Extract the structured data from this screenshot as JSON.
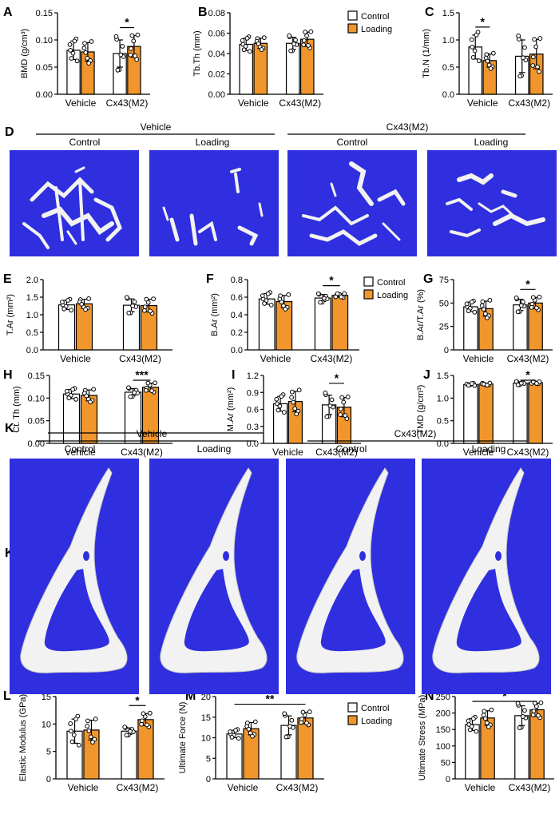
{
  "colors": {
    "control": "#ffffff",
    "loading": "#f0962d",
    "stroke": "#000000",
    "bone_bg": "#2f2fe0",
    "bone": "#f2f2f2"
  },
  "legend": {
    "control": "Control",
    "loading": "Loading"
  },
  "groups": [
    "Vehicle",
    "Cx43(M2)"
  ],
  "panels_top_text": {
    "D": {
      "label": "D",
      "group1": "Vehicle",
      "group2": "Cx43(M2)",
      "sub": [
        "Control",
        "Loading",
        "Control",
        "Loading"
      ]
    },
    "K": {
      "label": "K",
      "group1": "Vehicle",
      "group2": "Cx43(M2)",
      "sub": [
        "Control",
        "Loading",
        "Control",
        "Loading"
      ]
    }
  },
  "chart_data": [
    {
      "id": "A",
      "type": "bar",
      "ylabel": "BMD (g/cm³)",
      "ylim": [
        0,
        0.15
      ],
      "yticks": [
        "0.00",
        "0.05",
        "0.10",
        "0.15"
      ],
      "categories": [
        "Vehicle",
        "Cx43(M2)"
      ],
      "series": [
        {
          "name": "Control",
          "values": [
            0.081,
            0.075
          ],
          "err": [
            0.017,
            0.025
          ]
        },
        {
          "name": "Loading",
          "values": [
            0.078,
            0.088
          ],
          "err": [
            0.017,
            0.02
          ]
        }
      ],
      "sig": [
        {
          "text": "*",
          "compare": "Cx43(M2) Control vs Loading"
        }
      ]
    },
    {
      "id": "B",
      "type": "bar",
      "ylabel": "Tb.Th (mm)",
      "ylim": [
        0,
        0.08
      ],
      "yticks": [
        "0.00",
        "0.02",
        "0.04",
        "0.06",
        "0.08"
      ],
      "categories": [
        "Vehicle",
        "Cx43(M2)"
      ],
      "series": [
        {
          "name": "Control",
          "values": [
            0.049,
            0.05
          ],
          "err": [
            0.006,
            0.006
          ]
        },
        {
          "name": "Loading",
          "values": [
            0.05,
            0.054
          ],
          "err": [
            0.005,
            0.007
          ]
        }
      ],
      "sig": []
    },
    {
      "id": "C",
      "type": "bar",
      "ylabel": "Tb.N (1/mm)",
      "ylim": [
        0,
        1.5
      ],
      "yticks": [
        "0.0",
        "0.5",
        "1.0",
        "1.5"
      ],
      "categories": [
        "Vehicle",
        "Cx43(M2)"
      ],
      "series": [
        {
          "name": "Control",
          "values": [
            0.87,
            0.7
          ],
          "err": [
            0.22,
            0.3
          ]
        },
        {
          "name": "Loading",
          "values": [
            0.62,
            0.74
          ],
          "err": [
            0.12,
            0.27
          ]
        }
      ],
      "sig": [
        {
          "text": "*",
          "compare": "Vehicle Control vs Loading"
        }
      ]
    },
    {
      "id": "E",
      "type": "bar",
      "ylabel": "T.Ar (mm²)",
      "ylim": [
        0,
        2.0
      ],
      "yticks": [
        "0.0",
        "0.5",
        "1.0",
        "1.5",
        "2.0"
      ],
      "categories": [
        "Vehicle",
        "Cx43(M2)"
      ],
      "series": [
        {
          "name": "Control",
          "values": [
            1.28,
            1.27
          ],
          "err": [
            0.13,
            0.18
          ]
        },
        {
          "name": "Loading",
          "values": [
            1.31,
            1.26
          ],
          "err": [
            0.13,
            0.18
          ]
        }
      ],
      "sig": []
    },
    {
      "id": "F",
      "type": "bar",
      "ylabel": "B.Ar (mm²)",
      "ylim": [
        0,
        0.8
      ],
      "yticks": [
        "0.0",
        "0.2",
        "0.4",
        "0.6",
        "0.8"
      ],
      "categories": [
        "Vehicle",
        "Cx43(M2)"
      ],
      "series": [
        {
          "name": "Control",
          "values": [
            0.58,
            0.59
          ],
          "err": [
            0.06,
            0.04
          ]
        },
        {
          "name": "Loading",
          "values": [
            0.55,
            0.62
          ],
          "err": [
            0.07,
            0.02
          ]
        }
      ],
      "sig": [
        {
          "text": "*",
          "compare": "Cx43(M2) Control vs Loading"
        }
      ]
    },
    {
      "id": "G",
      "type": "bar",
      "ylabel": "B.Ar/T.Ar (%)",
      "ylim": [
        0,
        75
      ],
      "yticks": [
        "0",
        "25",
        "50",
        "75"
      ],
      "categories": [
        "Vehicle",
        "Cx43(M2)"
      ],
      "series": [
        {
          "name": "Control",
          "values": [
            46,
            48
          ],
          "err": [
            5,
            6
          ]
        },
        {
          "name": "Loading",
          "values": [
            44,
            50
          ],
          "err": [
            8,
            6
          ]
        }
      ],
      "sig": [
        {
          "text": "*",
          "compare": "Cx43(M2) Control vs Loading"
        }
      ]
    },
    {
      "id": "H",
      "type": "bar",
      "ylabel": "Ct. Th (mm)",
      "ylim": [
        0,
        0.15
      ],
      "yticks": [
        "0.00",
        "0.05",
        "0.10",
        "0.15"
      ],
      "categories": [
        "Vehicle",
        "Cx43(M2)"
      ],
      "series": [
        {
          "name": "Control",
          "values": [
            0.109,
            0.113
          ],
          "err": [
            0.01,
            0.008
          ]
        },
        {
          "name": "Loading",
          "values": [
            0.106,
            0.124
          ],
          "err": [
            0.012,
            0.009
          ]
        }
      ],
      "sig": [
        {
          "text": "***",
          "compare": "Cx43(M2) Control vs Loading"
        }
      ]
    },
    {
      "id": "I",
      "type": "bar",
      "ylabel": "M.Ar (mm²)",
      "ylim": [
        0,
        1.2
      ],
      "yticks": [
        "0.0",
        "0.3",
        "0.6",
        "0.9",
        "1.2"
      ],
      "categories": [
        "Vehicle",
        "Cx43(M2)"
      ],
      "series": [
        {
          "name": "Control",
          "values": [
            0.7,
            0.68
          ],
          "err": [
            0.13,
            0.17
          ]
        },
        {
          "name": "Loading",
          "values": [
            0.74,
            0.64
          ],
          "err": [
            0.18,
            0.17
          ]
        }
      ],
      "sig": [
        {
          "text": "*",
          "compare": "Cx43(M2) Control vs Loading"
        }
      ]
    },
    {
      "id": "J",
      "type": "bar",
      "ylabel": "TMD (g/cm³)",
      "ylim": [
        0,
        1.5
      ],
      "yticks": [
        "0.0",
        "0.5",
        "1.0",
        "1.5"
      ],
      "categories": [
        "Vehicle",
        "Cx43(M2)"
      ],
      "series": [
        {
          "name": "Control",
          "values": [
            1.3,
            1.33
          ],
          "err": [
            0.02,
            0.03
          ]
        },
        {
          "name": "Loading",
          "values": [
            1.31,
            1.34
          ],
          "err": [
            0.02,
            0.02
          ]
        }
      ],
      "sig": [
        {
          "text": "*",
          "compare": "Cx43(M2) Control vs Loading"
        }
      ]
    },
    {
      "id": "L",
      "type": "bar",
      "ylabel": "Elastic Modulus (GPa)",
      "ylim": [
        0,
        15
      ],
      "yticks": [
        "0",
        "5",
        "10",
        "15"
      ],
      "categories": [
        "Vehicle",
        "Cx43(M2)"
      ],
      "series": [
        {
          "name": "Control",
          "values": [
            8.7,
            8.7
          ],
          "err": [
            2.2,
            0.6
          ]
        },
        {
          "name": "Loading",
          "values": [
            8.9,
            10.8
          ],
          "err": [
            1.8,
            1.1
          ]
        }
      ],
      "sig": [
        {
          "text": "*",
          "compare": "Cx43(M2) Control vs Loading"
        }
      ]
    },
    {
      "id": "M",
      "type": "bar",
      "ylabel": "Ultimate Force (N)",
      "ylim": [
        0,
        20
      ],
      "yticks": [
        "0",
        "5",
        "10",
        "15",
        "20"
      ],
      "categories": [
        "Vehicle",
        "Cx43(M2)"
      ],
      "series": [
        {
          "name": "Control",
          "values": [
            10.9,
            13.0
          ],
          "err": [
            0.9,
            2.3
          ]
        },
        {
          "name": "Loading",
          "values": [
            12.2,
            14.8
          ],
          "err": [
            1.5,
            1.4
          ]
        }
      ],
      "sig": [
        {
          "text": "**",
          "compare": "Vehicle Control vs Cx43(M2) Loading"
        }
      ]
    },
    {
      "id": "N",
      "type": "bar",
      "ylabel": "Ultimate Stress (MPa)",
      "ylim": [
        0,
        250
      ],
      "yticks": [
        "0",
        "50",
        "100",
        "150",
        "200",
        "250"
      ],
      "categories": [
        "Vehicle",
        "Cx43(M2)"
      ],
      "series": [
        {
          "name": "Control",
          "values": [
            165,
            192
          ],
          "err": [
            18,
            30
          ]
        },
        {
          "name": "Loading",
          "values": [
            185,
            210
          ],
          "err": [
            22,
            20
          ]
        }
      ],
      "sig": [
        {
          "text": "*",
          "compare": "Vehicle Control vs Cx43(M2) Loading"
        }
      ]
    }
  ]
}
